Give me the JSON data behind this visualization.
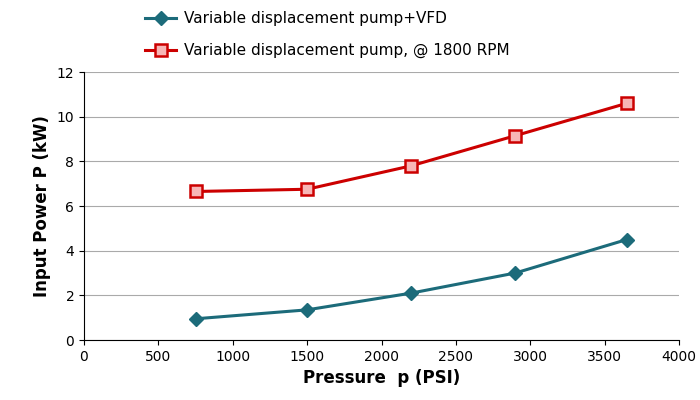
{
  "vfd_x": [
    750,
    1500,
    2200,
    2900,
    3650
  ],
  "vfd_y": [
    0.95,
    1.35,
    2.1,
    3.0,
    4.5
  ],
  "pump_x": [
    750,
    1500,
    2200,
    2900,
    3650
  ],
  "pump_y": [
    6.65,
    6.75,
    7.8,
    9.15,
    10.6
  ],
  "vfd_color": "#1c6b7a",
  "pump_color": "#cc0000",
  "pump_marker_face": "#f7b6b6",
  "vfd_label": "Variable displacement pump+VFD",
  "pump_label": "Variable displacement pump, @ 1800 RPM",
  "xlabel": "Pressure  p (PSI)",
  "ylabel": "Input Power P (kW)",
  "xlim": [
    0,
    4000
  ],
  "ylim": [
    0,
    12
  ],
  "xticks": [
    0,
    500,
    1000,
    1500,
    2000,
    2500,
    3000,
    3500,
    4000
  ],
  "yticks": [
    0,
    2,
    4,
    6,
    8,
    10,
    12
  ],
  "figsize": [
    7.0,
    4.0
  ],
  "dpi": 100
}
